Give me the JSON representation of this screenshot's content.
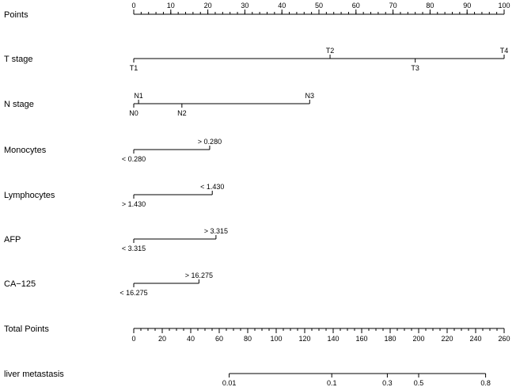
{
  "chart_data": {
    "type": "nomogram",
    "rows": [
      {
        "label": "Points",
        "kind": "axis",
        "min": 0,
        "max": 100,
        "major_ticks": [
          0,
          10,
          20,
          30,
          40,
          50,
          60,
          70,
          80,
          90,
          100
        ],
        "minor_step": 2,
        "labels_side": "above"
      },
      {
        "label": "T stage",
        "kind": "variable",
        "points_range": [
          0,
          100
        ],
        "levels": [
          {
            "text": "T1",
            "points": 0,
            "side": "below"
          },
          {
            "text": "T2",
            "points": 53,
            "side": "above"
          },
          {
            "text": "T3",
            "points": 76,
            "side": "below"
          },
          {
            "text": "T4",
            "points": 100,
            "side": "above"
          }
        ]
      },
      {
        "label": "N stage",
        "kind": "variable",
        "points_range": [
          0,
          47.5
        ],
        "levels": [
          {
            "text": "N0",
            "points": 0,
            "side": "below"
          },
          {
            "text": "N1",
            "points": 1.3,
            "side": "above"
          },
          {
            "text": "N2",
            "points": 13,
            "side": "below"
          },
          {
            "text": "N3",
            "points": 47.5,
            "side": "above"
          }
        ]
      },
      {
        "label": "Monocytes",
        "kind": "variable",
        "points_range": [
          0,
          20.5
        ],
        "levels": [
          {
            "text": "< 0.280",
            "points": 0,
            "side": "below"
          },
          {
            "text": "> 0.280",
            "points": 20.5,
            "side": "above"
          }
        ]
      },
      {
        "label": "Lymphocytes",
        "kind": "variable",
        "points_range": [
          0,
          21.2
        ],
        "levels": [
          {
            "text": "> 1.430",
            "points": 0,
            "side": "below"
          },
          {
            "text": "< 1.430",
            "points": 21.2,
            "side": "above"
          }
        ]
      },
      {
        "label": "AFP",
        "kind": "variable",
        "points_range": [
          0,
          22.2
        ],
        "levels": [
          {
            "text": "< 3.315",
            "points": 0,
            "side": "below"
          },
          {
            "text": "> 3.315",
            "points": 22.2,
            "side": "above"
          }
        ]
      },
      {
        "label": "CA−125",
        "kind": "variable",
        "points_range": [
          0,
          17.6
        ],
        "levels": [
          {
            "text": "< 16.275",
            "points": 0,
            "side": "below"
          },
          {
            "text": "> 16.275",
            "points": 17.6,
            "side": "above"
          }
        ]
      },
      {
        "label": "Total Points",
        "kind": "axis",
        "min": 0,
        "max": 260,
        "major_ticks": [
          0,
          20,
          40,
          60,
          80,
          100,
          120,
          140,
          160,
          180,
          200,
          220,
          240,
          260
        ],
        "minor_step": 5,
        "labels_side": "below"
      },
      {
        "label": "liver metastasis",
        "kind": "probability",
        "total_points_range": [
          67,
          247
        ],
        "ticks": [
          {
            "text": "0.01",
            "total_points": 67
          },
          {
            "text": "0.1",
            "total_points": 139
          },
          {
            "text": "0.3",
            "total_points": 178
          },
          {
            "text": "0.5",
            "total_points": 200
          },
          {
            "text": "0.8",
            "total_points": 247
          }
        ],
        "labels_side": "below"
      }
    ]
  }
}
